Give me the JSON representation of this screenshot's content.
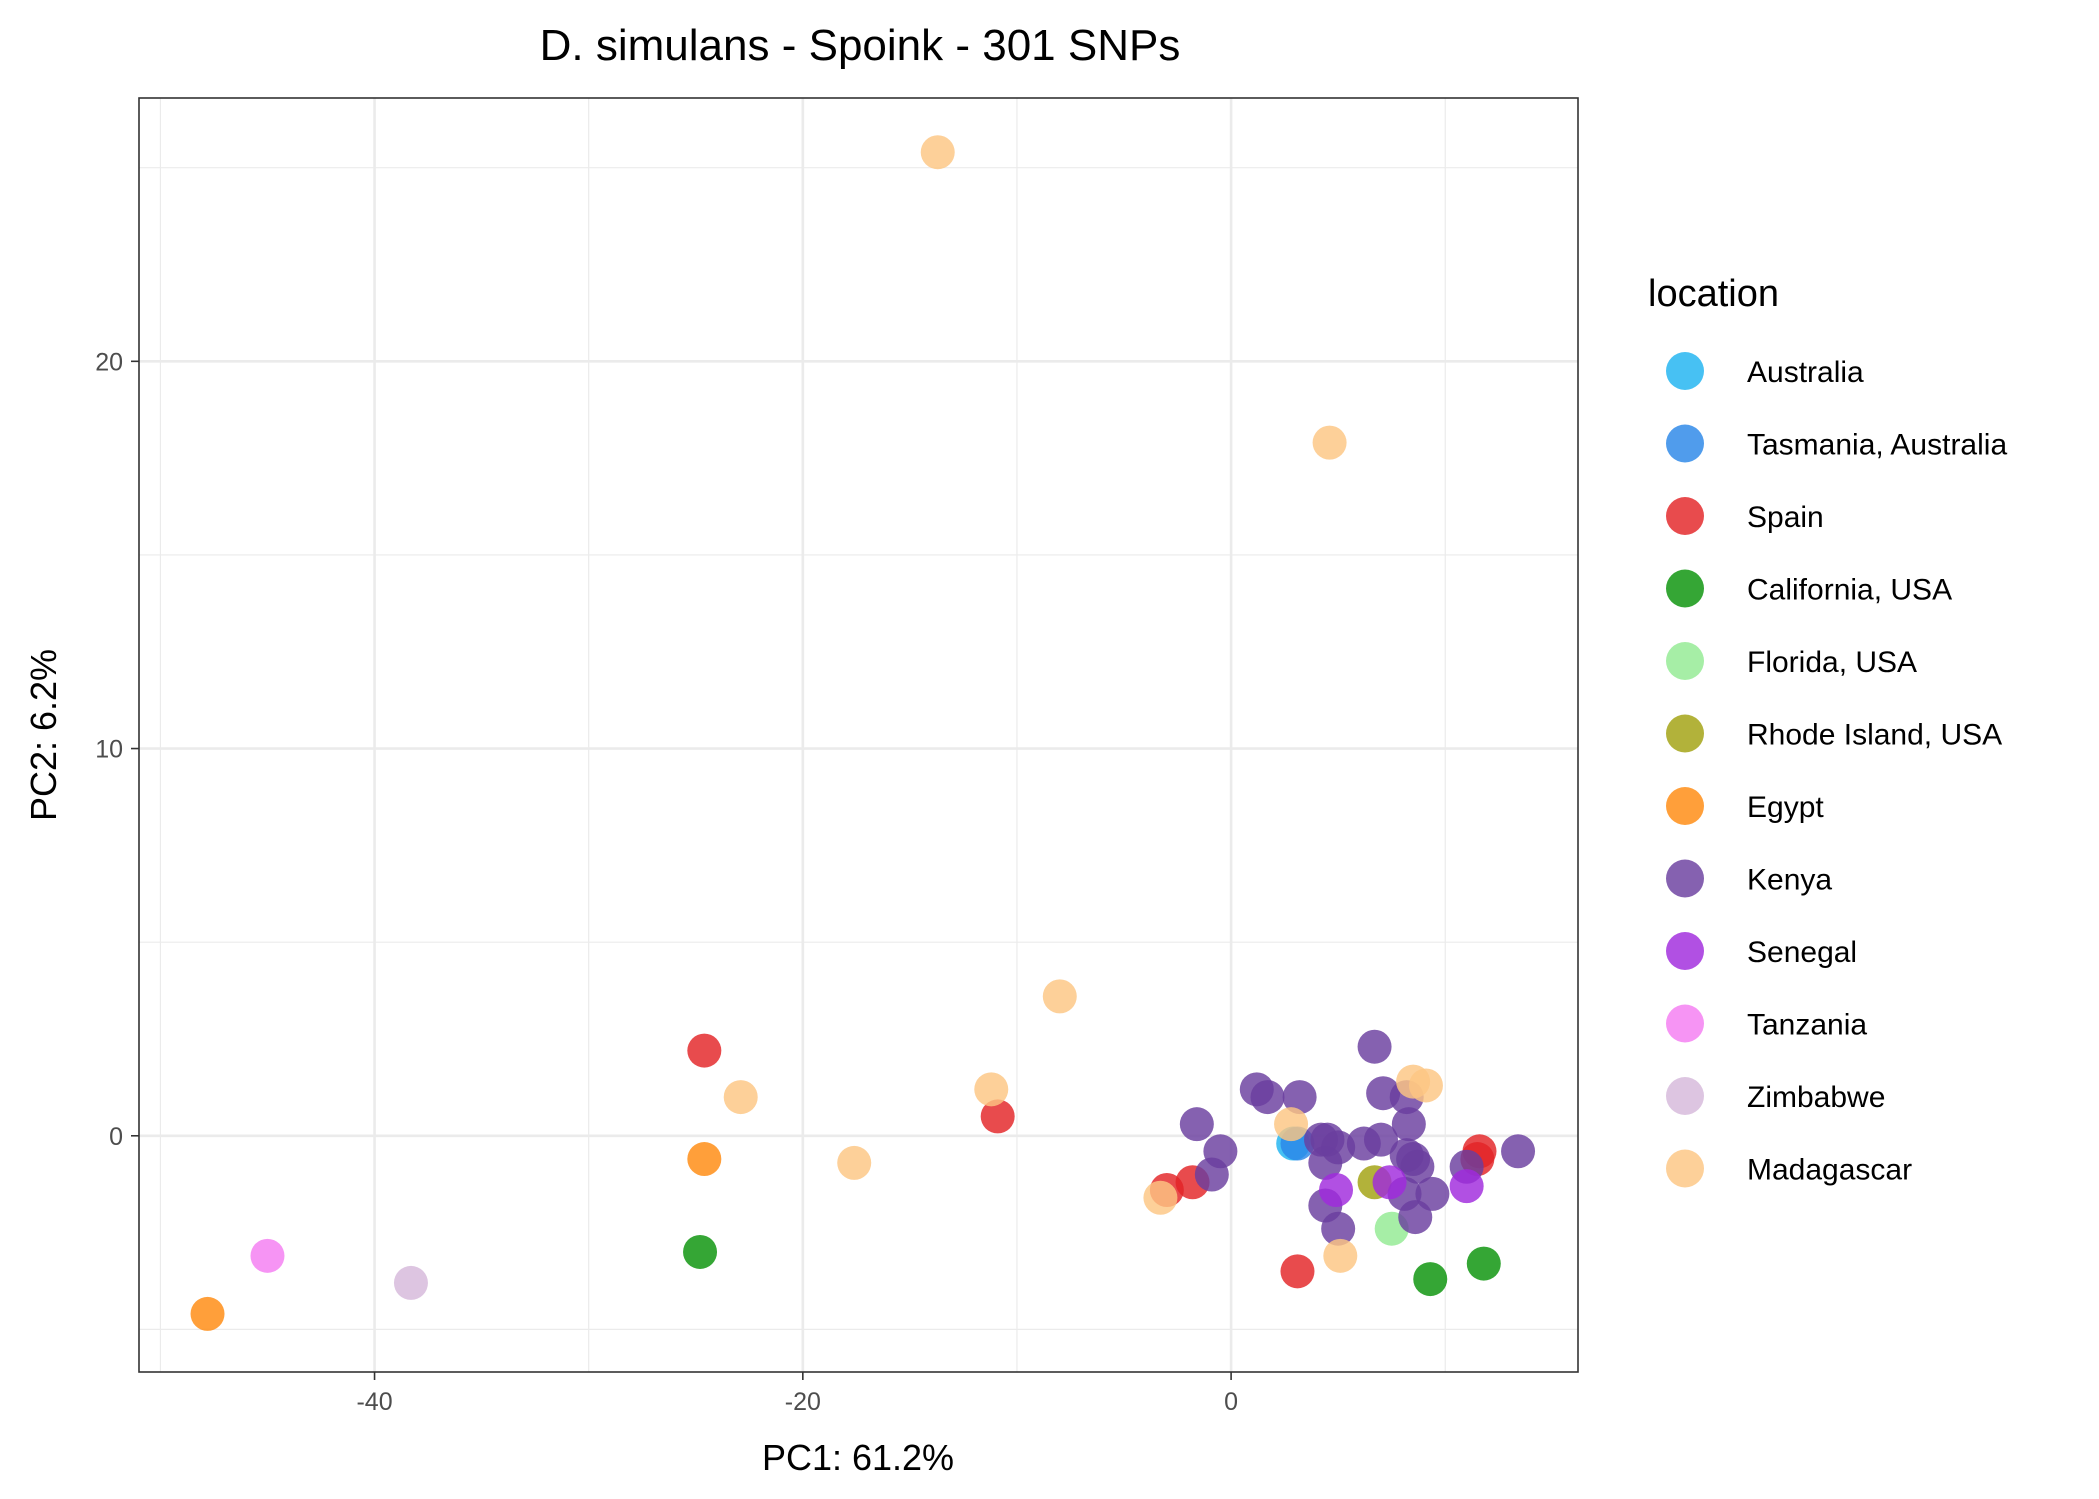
{
  "chart_data": {
    "type": "scatter",
    "title": "D. simulans - Spoink - 301 SNPs",
    "xlabel": "PC1: 61.2%",
    "ylabel": "PC2: 6.2%",
    "xlim": [
      -51,
      16.2
    ],
    "ylim": [
      -6.1,
      26.8
    ],
    "x_ticks": [
      -40,
      -20,
      0
    ],
    "x_tick_labels": [
      "-40",
      "-20",
      "0"
    ],
    "y_ticks": [
      0,
      10,
      20
    ],
    "y_tick_labels": [
      "0",
      "10",
      "20"
    ],
    "grid": true,
    "legend": {
      "title": "location",
      "position": "right"
    },
    "series": [
      {
        "name": "Australia",
        "color": "#1fb3f0",
        "points": [
          [
            2.9,
            -0.2
          ]
        ]
      },
      {
        "name": "Tasmania, Australia",
        "color": "#2a86e8",
        "points": [
          [
            3.1,
            -0.2
          ]
        ]
      },
      {
        "name": "Spain",
        "color": "#e32326",
        "points": [
          [
            -24.6,
            2.2
          ],
          [
            -10.9,
            0.5
          ],
          [
            -3.0,
            -1.4
          ],
          [
            -1.8,
            -1.2
          ],
          [
            3.1,
            -3.5
          ],
          [
            11.5,
            -0.6
          ],
          [
            11.6,
            -0.4
          ]
        ]
      },
      {
        "name": "California, USA",
        "color": "#089208",
        "points": [
          [
            -24.8,
            -3.0
          ],
          [
            9.3,
            -3.7
          ],
          [
            11.8,
            -3.3
          ]
        ]
      },
      {
        "name": "Florida, USA",
        "color": "#93ea93",
        "points": [
          [
            7.5,
            -2.4
          ]
        ]
      },
      {
        "name": "Rhode Island, USA",
        "color": "#a1a10f",
        "points": [
          [
            6.7,
            -1.2
          ]
        ]
      },
      {
        "name": "Egypt",
        "color": "#ff8a0f",
        "points": [
          [
            -24.6,
            -0.6
          ],
          [
            -47.8,
            -4.6
          ]
        ]
      },
      {
        "name": "Kenya",
        "color": "#6a3e9f",
        "points": [
          [
            1.2,
            1.2
          ],
          [
            1.7,
            1.0
          ],
          [
            3.2,
            1.0
          ],
          [
            -1.6,
            0.3
          ],
          [
            6.7,
            2.3
          ],
          [
            7.1,
            1.1
          ],
          [
            8.2,
            1.0
          ],
          [
            8.3,
            0.3
          ],
          [
            4.2,
            -0.1
          ],
          [
            4.5,
            -0.1
          ],
          [
            6.2,
            -0.2
          ],
          [
            7.0,
            -0.1
          ],
          [
            -0.5,
            -0.4
          ],
          [
            -0.9,
            -1.0
          ],
          [
            4.4,
            -0.7
          ],
          [
            5.0,
            -0.3
          ],
          [
            8.2,
            -0.5
          ],
          [
            8.5,
            -0.6
          ],
          [
            8.7,
            -0.8
          ],
          [
            9.4,
            -1.5
          ],
          [
            13.4,
            -0.4
          ],
          [
            11.0,
            -0.8
          ],
          [
            8.1,
            -1.5
          ],
          [
            4.4,
            -1.8
          ],
          [
            5.0,
            -2.4
          ],
          [
            8.6,
            -2.1
          ]
        ]
      },
      {
        "name": "Senegal",
        "color": "#a029dd",
        "points": [
          [
            4.9,
            -1.4
          ],
          [
            7.4,
            -1.2
          ],
          [
            11.0,
            -1.3
          ]
        ]
      },
      {
        "name": "Tanzania",
        "color": "#f47cf1",
        "points": [
          [
            -45.0,
            -3.1
          ]
        ]
      },
      {
        "name": "Zimbabwe",
        "color": "#d6b8db",
        "points": [
          [
            -38.3,
            -3.8
          ]
        ]
      },
      {
        "name": "Madagascar",
        "color": "#fdc682",
        "points": [
          [
            -13.7,
            25.4
          ],
          [
            4.6,
            17.9
          ],
          [
            -8.0,
            3.6
          ],
          [
            -22.9,
            1.0
          ],
          [
            -11.2,
            1.2
          ],
          [
            -17.6,
            -0.7
          ],
          [
            -3.3,
            -1.6
          ],
          [
            2.8,
            0.3
          ],
          [
            5.1,
            -3.1
          ],
          [
            8.5,
            1.4
          ],
          [
            9.1,
            1.3
          ]
        ]
      }
    ]
  }
}
